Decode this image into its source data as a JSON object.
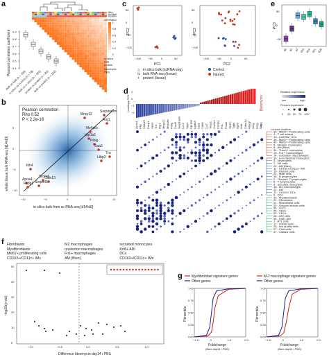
{
  "panels": {
    "a": {
      "label": "a",
      "ylabel": "Pearson correlation coefficient",
      "yticks": [
        "0.9",
        "0.8",
        "0.7",
        "0.6",
        "0.5",
        "0.4"
      ],
      "xcats": [
        "bulk vs bulk (n = 156)",
        "in silico vs in silico (n = 78)",
        "bulk vs in silico (n = 420)",
        "protein vs protein (n = 80)",
        "bulk vs protein (n = 232)"
      ],
      "legend_rows": [
        "day",
        "modality",
        "treatment"
      ],
      "legend_color_title": "correlation",
      "legend_modalities": [
        "in silico",
        "bulk",
        "protein"
      ],
      "legend_treatments": [
        "Bleomycin",
        "PBS"
      ],
      "scale_ticks": [
        "1",
        "0.8",
        "0.6",
        "0.4",
        "0.2",
        "0"
      ]
    },
    "b": {
      "label": "b",
      "stat_title": "Pearson correlation",
      "rho": "Rho 0.52",
      "p": "P < 2.2e-16",
      "xlabel": "in silico bulk from sc-RNA-seq [d14/d0]",
      "ylabel": "whole tissue bulk RNA-seq [d14/d0]",
      "ticks": [
        "−10",
        "−5",
        "0",
        "5",
        "10"
      ],
      "yticks": [
        "5",
        "0",
        "−5",
        "−10"
      ],
      "genes": [
        "Mmp12",
        "Serpina3m",
        "Arg1",
        "Ms4a6c",
        "Ugt1a1",
        "Pthlg",
        "Saa3",
        "Tnc",
        "Ltbp3",
        "Itih4",
        "Apoa4",
        "Slc4a5",
        "Fabp1",
        "Serpinf1",
        "Cldn13"
      ]
    },
    "c": {
      "label": "c",
      "pc1_label": "PC1",
      "pc2_label": "PC2",
      "pc3_label": "PC3",
      "pc_ticks_x": [
        "−100",
        "−50",
        "0",
        "50"
      ],
      "pc_ticks_y": [
        "50",
        "0",
        "−50",
        "−100"
      ],
      "shape_legend": [
        "in silico bulk (scRNA-seq)",
        "bulk RNA-seq (tissue)",
        "protein (tissue)"
      ],
      "color_legend": [
        "Control",
        "Injured"
      ],
      "colors": {
        "control": "#2c4f9e",
        "injured": "#c0392b"
      }
    },
    "d": {
      "label": "d",
      "loadings_label": "Loadings PC3",
      "bar_ticks": [
        "1",
        "0",
        "−1",
        "−2"
      ],
      "bleomycin_tag": "Bleomycin",
      "pbs_tag": "PBS",
      "rel_expr_title": "Relative expression",
      "rel_low": "low",
      "rel_high": "high",
      "pct_title": "Percent expressed",
      "pct_values": [
        "0",
        "25",
        "50",
        "75",
        "100"
      ],
      "louvain_title": "Louvain clusters",
      "genes_left": [
        "Apoa4",
        "Pltp",
        "Cldn13",
        "Fabp1",
        "Saa3",
        "Tnc",
        "Arg1",
        "Mmp12",
        "Ms4a6c",
        "Pthlg",
        "Cxcl5",
        "Serpina3n",
        "Lcn2",
        "Spp1",
        "Gpnmb",
        "Lgals3",
        "Ctsd",
        "Cd68",
        "Ccl7",
        "Timp1",
        "Col1a1",
        "Col3a1",
        "Fn1",
        "Postn",
        "Sparc",
        "Tgfbi",
        "Itgb6",
        "Krt8",
        "Cdkn1a",
        "Hbegf",
        "Areg",
        "Ereg",
        "Il1rn"
      ],
      "clusters": [
        "39 - Mki67+ Proliferating cells",
        "4 - T cell subset",
        "13 - Cd209a+ DCs",
        "38 - Mki67+ Proliferating cells",
        "40 - Mki67+ Proliferating cells",
        "5 - Ms4a3+ monocytes",
        "6 - AM (Bleo)",
        "34 - Thbs1+ monocytes",
        "19 - Fn1+ macrophages",
        "14 - resolution macrophages",
        "16 - non-classical monocytes",
        "3 - Neutrophils",
        "7 - NK cells",
        "24 - AM (Bleo)",
        "11 - CD163+/CD11c+ IMs",
        "10 - Plasma cells",
        "20 - Mast cells",
        "18 - B lymphocytes",
        "2 - Themis+ T lymphocytes",
        "8 - T lymphocytes",
        "9 - recruited monocytes",
        "15 - M2 macrophages",
        "22 - AM",
        "12 - CD103+ DCs",
        "0 - DCs",
        "33 - Myofibroblasts",
        "21 - Fibroblasts",
        "31 - Mesothelial cells",
        "29 - Smooth muscle cells",
        "36 - LECs",
        "25 - VECs",
        "30 - CECs",
        "26 - AT2 cells",
        "35 - Krt8+ ADI",
        "1 - AT1 cells",
        "17 - Goblet cells",
        "28 - low quality cells",
        "27 - Club cells",
        "37 - Ciliated cells"
      ]
    },
    "e": {
      "label": "e",
      "ylabel": "PC3",
      "yticks": [
        "50",
        "0",
        "−50"
      ],
      "xcats": [
        "d0",
        "d3",
        "d7",
        "d10",
        "d14",
        "d21",
        "d28"
      ],
      "box_colors": [
        "#8e44ad",
        "#6c3483",
        "#5dade2",
        "#48c9b0",
        "#1abc9c",
        "#2e86c1",
        "#17a589"
      ]
    },
    "f": {
      "label": "f",
      "legend_col1": [
        "Fibroblasts",
        "Myofibroblasts",
        "Mki67+ proliferating cells",
        "CD163+/CD11c+ IMs"
      ],
      "legend_col2": [
        "M2 macrophages",
        "resolution macrophages",
        "Fn1+ macrophages",
        "AM (Bleo)"
      ],
      "legend_col3": [
        "recruited monocytes",
        "Krt8+ ADI",
        "DCs",
        "CD163+/CD11c+ IMs"
      ],
      "xlabel": "Difference bleomycin day14 / PBS",
      "ylabel": "−log10(p-val)",
      "xticks": [
        "−1.0",
        "−0.5",
        "0.0",
        "0.5",
        "1.0"
      ],
      "yticks": [
        "50",
        "40",
        "30",
        "20",
        "10",
        "0"
      ]
    },
    "g": {
      "label": "g",
      "left_legend": [
        "Myofibroblast signature genes",
        "Other genes"
      ],
      "right_legend": [
        "M-2 macrophage signature genes",
        "Other genes"
      ],
      "ylabel": "Percentile",
      "xlabel_main": "Foldchange",
      "xlabel_sub": "(Bleo day14 / PBS)",
      "yticks": [
        "1.00",
        "0.75",
        "0.50",
        "0.25",
        "0.00"
      ],
      "xticks_left": [
        "−1.0",
        "0",
        "1.0",
        "2.0"
      ],
      "xticks_right": [
        "−1.0",
        "0",
        "1.0",
        "2.0"
      ],
      "colors": {
        "signature": "#d0201a",
        "other": "#1a1a8c"
      }
    }
  },
  "chart_data": [
    {
      "type": "line",
      "title": "",
      "xlabel": "Foldchange (Bleo day14 / PBS)",
      "ylabel": "Percentile",
      "ylim": [
        0,
        1
      ],
      "series": [
        {
          "name": "Myofibroblast signature genes",
          "x": [
            -1.0,
            -0.2,
            0.0,
            0.1,
            0.2,
            0.4,
            1.0,
            2.0
          ],
          "y": [
            0.0,
            0.02,
            0.1,
            0.3,
            0.6,
            0.85,
            0.98,
            1.0
          ]
        },
        {
          "name": "Other genes",
          "x": [
            -1.0,
            -0.3,
            -0.1,
            0.0,
            0.1,
            0.3,
            1.0,
            2.0
          ],
          "y": [
            0.0,
            0.03,
            0.2,
            0.5,
            0.8,
            0.95,
            0.99,
            1.0
          ]
        }
      ]
    },
    {
      "type": "line",
      "title": "",
      "xlabel": "Foldchange (Bleo day14 / PBS)",
      "ylabel": "Percentile",
      "ylim": [
        0,
        1
      ],
      "series": [
        {
          "name": "M-2 macrophage signature genes",
          "x": [
            -1.0,
            -0.2,
            0.0,
            0.15,
            0.3,
            0.5,
            1.0,
            2.0
          ],
          "y": [
            0.0,
            0.02,
            0.08,
            0.3,
            0.6,
            0.88,
            0.98,
            1.0
          ]
        },
        {
          "name": "Other genes",
          "x": [
            -1.0,
            -0.3,
            -0.1,
            0.0,
            0.1,
            0.3,
            1.0,
            2.0
          ],
          "y": [
            0.0,
            0.03,
            0.2,
            0.5,
            0.8,
            0.95,
            0.99,
            1.0
          ]
        }
      ]
    },
    {
      "type": "bar",
      "title": "",
      "xlabel": "",
      "ylabel": "PC3",
      "categories": [
        "d0",
        "d3",
        "d7",
        "d10",
        "d14",
        "d21",
        "d28"
      ],
      "values": [
        -45,
        -10,
        35,
        30,
        40,
        15,
        5
      ],
      "ylim": [
        -70,
        70
      ]
    }
  ]
}
